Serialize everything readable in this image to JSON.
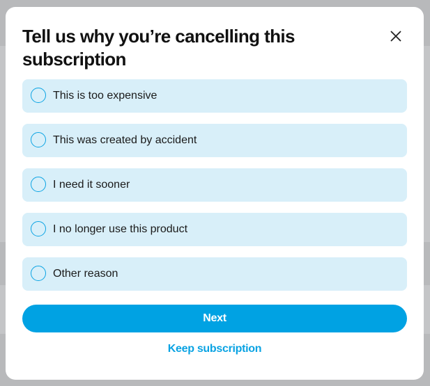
{
  "modal": {
    "title": "Tell us why you’re cancelling this subscription",
    "close_icon": "close-icon",
    "options": [
      {
        "label": "This is too expensive",
        "selected": false
      },
      {
        "label": "This was created by accident",
        "selected": false
      },
      {
        "label": "I need it sooner",
        "selected": false
      },
      {
        "label": "I no longer use this product",
        "selected": false
      },
      {
        "label": "Other reason",
        "selected": false
      }
    ],
    "next_label": "Next",
    "keep_label": "Keep subscription"
  },
  "colors": {
    "accent": "#00a2e3",
    "option_bg": "#d8eff9",
    "overlay": "#b8b9bb"
  }
}
